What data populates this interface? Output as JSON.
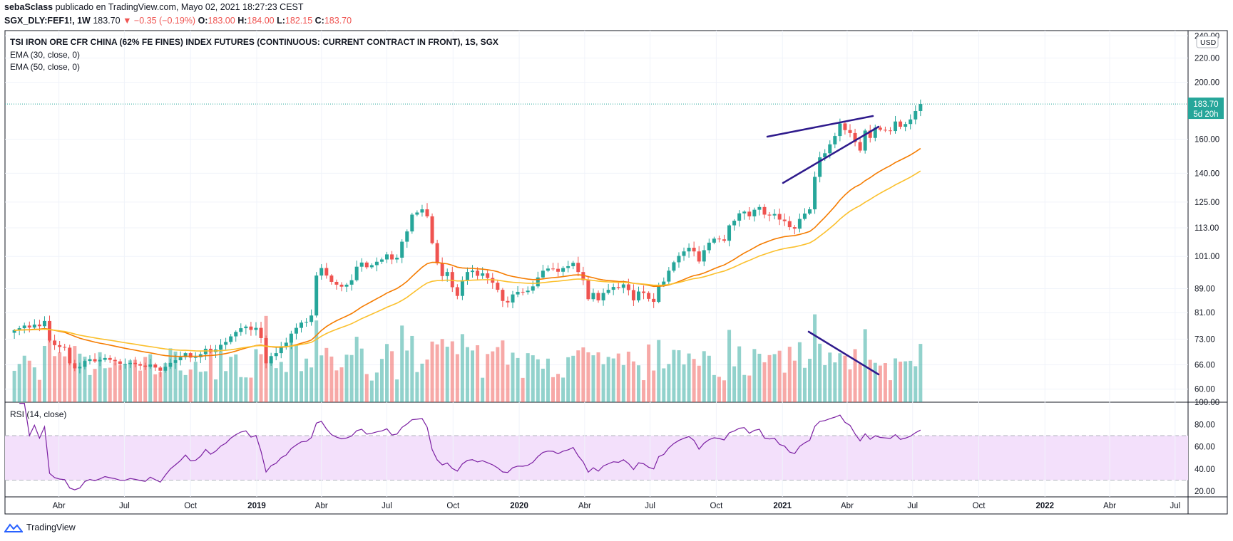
{
  "header": {
    "author": "sebaSclass",
    "published_text": "publicado en TradingView.com, Mayo 02, 2021 18:27:23 CEST",
    "symbol": "SGX_DLY:FEF1!, 1W",
    "price": "183.70",
    "change_arrow": "▼",
    "change": "−0.35 (−0.19%)",
    "ohlc": [
      {
        "label": "O:",
        "value": "183.00"
      },
      {
        "label": "H:",
        "value": "184.00"
      },
      {
        "label": "L:",
        "value": "182.15"
      },
      {
        "label": "C:",
        "value": "183.70"
      }
    ]
  },
  "legend": {
    "title": "TSI IRON ORE CFR CHINA (62% FE FINES) INDEX FUTURES (CONTINUOUS: CURRENT CONTRACT IN FRONT), 1S, SGX",
    "ema30": "EMA (30, close, 0)",
    "ema50": "EMA (50, close, 0)",
    "rsi": "RSI (14, close)"
  },
  "price_axis": {
    "currency": "USD",
    "ticks": [
      "240.00",
      "220.00",
      "200.00",
      "160.00",
      "140.00",
      "125.00",
      "113.00",
      "101.00",
      "89.00",
      "81.00",
      "73.00",
      "66.00",
      "60.00"
    ],
    "last_price_label": "183.70",
    "countdown_label": "5d 20h"
  },
  "rsi_axis": {
    "ticks": [
      "100.00",
      "80.00",
      "60.00",
      "40.00",
      "20.00"
    ]
  },
  "time_axis": {
    "labels": [
      "Abr",
      "Jul",
      "Oct",
      "2019",
      "Abr",
      "Jul",
      "Oct",
      "2020",
      "Abr",
      "Jul",
      "Oct",
      "2021",
      "Abr",
      "Jul",
      "Oct",
      "2022",
      "Abr",
      "Jul"
    ]
  },
  "footer": {
    "brand": "TradingView"
  },
  "colors": {
    "up": "#26a69a",
    "down": "#ef5350",
    "ema30": "#f57c00",
    "ema50": "#fbc02d",
    "rsi_line": "#7b1fa2",
    "rsi_band": "#f3e0fb",
    "trendline": "#2e1a8c"
  },
  "chart_data": {
    "type": "candlestick",
    "interval": "weekly",
    "scale": "log",
    "price_range": [
      57,
      245
    ],
    "rsi_range": [
      15,
      100
    ],
    "rsi_levels": [
      30,
      70
    ],
    "start_week": "2018-01-29",
    "close": [
      75.6,
      76.2,
      77.0,
      76.4,
      77.3,
      76.8,
      78.4,
      72.6,
      71.3,
      70.8,
      70.6,
      66.4,
      65.1,
      65.5,
      67.0,
      67.5,
      66.9,
      67.3,
      67.8,
      67.3,
      66.9,
      66.2,
      66.2,
      66.5,
      66.2,
      65.8,
      65.5,
      66.1,
      65.3,
      64.5,
      65.5,
      66.5,
      67.2,
      68.0,
      69.1,
      67.9,
      68.0,
      68.8,
      70.3,
      69.4,
      70.1,
      71.4,
      72.2,
      73.8,
      75.1,
      76.2,
      76.7,
      75.7,
      76.3,
      73.3,
      66.4,
      68.3,
      69.1,
      71.0,
      72.0,
      74.6,
      76.3,
      77.9,
      78.1,
      80.1,
      93.7,
      96.5,
      93.7,
      91.4,
      90.4,
      89.7,
      90.4,
      92.0,
      97.0,
      98.6,
      96.8,
      97.6,
      98.9,
      99.8,
      101.8,
      99.8,
      100.5,
      107.0,
      111.4,
      119.0,
      120.0,
      121.5,
      118.2,
      106.4,
      98.3,
      93.5,
      95.0,
      89.5,
      86.5,
      92.0,
      95.0,
      95.5,
      93.6,
      94.5,
      92.8,
      91.1,
      88.6,
      84.8,
      84.3,
      87.0,
      87.9,
      87.8,
      88.3,
      89.8,
      93.0,
      95.5,
      96.3,
      96.2,
      95.1,
      96.5,
      97.2,
      98.5,
      95.0,
      92.0,
      85.4,
      87.5,
      85.0,
      87.5,
      88.6,
      89.6,
      89.3,
      90.5,
      88.5,
      85.0,
      88.0,
      87.5,
      85.5,
      84.5,
      90.3,
      91.5,
      95.5,
      98.7,
      101.2,
      103.0,
      104.5,
      103.0,
      99.0,
      103.5,
      106.6,
      108.3,
      108.0,
      107.4,
      114.1,
      116.2,
      119.6,
      120.4,
      118.2,
      121.3,
      122.6,
      119.0,
      118.6,
      119.3,
      116.7,
      116.0,
      113.3,
      112.6,
      117.0,
      119.5,
      121.5,
      138.0,
      149.0,
      151.4,
      156.8,
      162.0,
      170.2,
      165.8,
      163.9,
      158.2,
      153.0,
      165.5,
      160.8,
      167.4,
      166.0,
      165.6,
      165.2,
      171.5,
      168.0,
      169.8,
      172.9,
      178.7,
      183.7
    ],
    "ema30_last": 156,
    "ema50_last": 143,
    "rsi_last": 73
  }
}
